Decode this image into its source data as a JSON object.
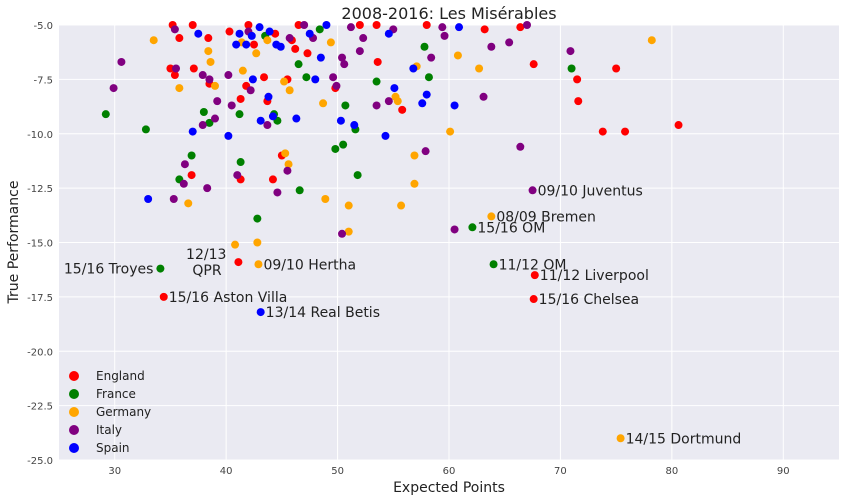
{
  "chart_data": {
    "type": "scatter",
    "title": "2008-2016: Les Misérables",
    "xlabel": "Expected Points",
    "ylabel": "True Performance",
    "xlim": [
      25,
      95
    ],
    "ylim": [
      -25,
      -5
    ],
    "xticks": [
      "30",
      "40",
      "50",
      "60",
      "70",
      "80",
      "90"
    ],
    "xtick_values": [
      30,
      40,
      50,
      60,
      70,
      80,
      90
    ],
    "yticks": [
      "-5.0",
      "-7.5",
      "-10.0",
      "-12.5",
      "-15.0",
      "-17.5",
      "-20.0",
      "-22.5",
      "-25.0"
    ],
    "ytick_values": [
      -5,
      -7.5,
      -10,
      -12.5,
      -15,
      -17.5,
      -20,
      -22.5,
      -25
    ],
    "grid": true,
    "legend_position": "bottom-left",
    "background": "#EAEAF2",
    "series": [
      {
        "name": "England",
        "color": "#FF0000",
        "points": [
          [
            35.2,
            -5.0
          ],
          [
            35.8,
            -5.6
          ],
          [
            37.0,
            -5.0
          ],
          [
            40.3,
            -5.3
          ],
          [
            42.0,
            -5.0
          ],
          [
            44.4,
            -5.4
          ],
          [
            46.5,
            -5.0
          ],
          [
            47.3,
            -6.3
          ],
          [
            52.0,
            -5.0
          ],
          [
            53.5,
            -5.0
          ],
          [
            58.0,
            -5.0
          ],
          [
            63.2,
            -5.2
          ],
          [
            66.4,
            -5.1
          ],
          [
            35.0,
            -7.0
          ],
          [
            35.4,
            -7.3
          ],
          [
            37.1,
            -7.0
          ],
          [
            38.5,
            -7.7
          ],
          [
            41.8,
            -7.8
          ],
          [
            43.4,
            -7.4
          ],
          [
            45.5,
            -7.5
          ],
          [
            49.8,
            -7.9
          ],
          [
            55.8,
            -8.9
          ],
          [
            67.6,
            -6.8
          ],
          [
            71.5,
            -7.5
          ],
          [
            75.0,
            -7.0
          ],
          [
            71.6,
            -8.5
          ],
          [
            73.8,
            -9.9
          ],
          [
            75.8,
            -9.9
          ],
          [
            80.6,
            -9.6
          ],
          [
            45.0,
            -11.0
          ],
          [
            44.2,
            -12.1
          ],
          [
            41.3,
            -12.1
          ],
          [
            36.9,
            -11.9
          ],
          [
            42.5,
            -5.9
          ],
          [
            45.9,
            -5.7
          ],
          [
            46.2,
            -6.1
          ],
          [
            41.3,
            -8.4
          ],
          [
            43.7,
            -8.5
          ],
          [
            53.6,
            -6.7
          ],
          [
            38.4,
            -5.6
          ],
          [
            41.1,
            -15.9
          ],
          [
            67.7,
            -16.5
          ],
          [
            34.4,
            -17.5
          ],
          [
            67.6,
            -17.6
          ]
        ]
      },
      {
        "name": "France",
        "color": "#008000",
        "points": [
          [
            29.2,
            -9.1
          ],
          [
            32.8,
            -9.8
          ],
          [
            35.8,
            -12.1
          ],
          [
            36.9,
            -11.0
          ],
          [
            38.0,
            -9.0
          ],
          [
            38.5,
            -9.5
          ],
          [
            41.2,
            -9.1
          ],
          [
            43.5,
            -5.5
          ],
          [
            44.3,
            -9.1
          ],
          [
            44.6,
            -9.4
          ],
          [
            46.5,
            -6.8
          ],
          [
            47.2,
            -7.4
          ],
          [
            48.4,
            -5.2
          ],
          [
            49.8,
            -10.7
          ],
          [
            50.5,
            -10.5
          ],
          [
            50.7,
            -8.7
          ],
          [
            51.6,
            -9.8
          ],
          [
            51.8,
            -11.9
          ],
          [
            53.5,
            -7.6
          ],
          [
            57.8,
            -6.0
          ],
          [
            58.2,
            -7.4
          ],
          [
            71.0,
            -7.0
          ],
          [
            41.3,
            -11.3
          ],
          [
            42.8,
            -13.9
          ],
          [
            46.6,
            -12.6
          ],
          [
            34.1,
            -16.2
          ],
          [
            62.1,
            -14.3
          ],
          [
            64.0,
            -16.0
          ]
        ]
      },
      {
        "name": "Germany",
        "color": "#FFA500",
        "points": [
          [
            33.5,
            -5.7
          ],
          [
            35.8,
            -7.9
          ],
          [
            38.4,
            -6.2
          ],
          [
            38.6,
            -6.7
          ],
          [
            39.0,
            -7.8
          ],
          [
            41.4,
            -5.8
          ],
          [
            41.5,
            -7.1
          ],
          [
            42.7,
            -6.3
          ],
          [
            43.7,
            -5.7
          ],
          [
            45.2,
            -7.6
          ],
          [
            45.7,
            -8.0
          ],
          [
            45.6,
            -11.4
          ],
          [
            45.3,
            -10.9
          ],
          [
            48.7,
            -8.6
          ],
          [
            48.9,
            -13.0
          ],
          [
            49.4,
            -5.8
          ],
          [
            51.0,
            -13.3
          ],
          [
            51.0,
            -14.5
          ],
          [
            55.2,
            -8.3
          ],
          [
            55.4,
            -8.5
          ],
          [
            55.7,
            -13.3
          ],
          [
            56.9,
            -11.0
          ],
          [
            56.9,
            -12.3
          ],
          [
            57.1,
            -6.9
          ],
          [
            60.1,
            -9.9
          ],
          [
            60.8,
            -6.4
          ],
          [
            62.7,
            -7.0
          ],
          [
            78.2,
            -5.7
          ],
          [
            36.6,
            -13.2
          ],
          [
            40.8,
            -15.1
          ],
          [
            42.8,
            -15.0
          ],
          [
            42.9,
            -16.0
          ],
          [
            63.8,
            -13.8
          ],
          [
            75.4,
            -24.0
          ]
        ]
      },
      {
        "name": "Italy",
        "color": "#800080",
        "points": [
          [
            30.6,
            -6.7
          ],
          [
            29.9,
            -7.9
          ],
          [
            35.5,
            -7.0
          ],
          [
            36.3,
            -11.4
          ],
          [
            36.2,
            -12.3
          ],
          [
            35.3,
            -13.0
          ],
          [
            35.4,
            -5.2
          ],
          [
            37.9,
            -7.3
          ],
          [
            38.5,
            -7.5
          ],
          [
            39.2,
            -8.5
          ],
          [
            39.0,
            -9.3
          ],
          [
            37.9,
            -9.6
          ],
          [
            38.3,
            -12.5
          ],
          [
            40.2,
            -7.3
          ],
          [
            40.5,
            -8.7
          ],
          [
            41.0,
            -11.9
          ],
          [
            42.0,
            -5.3
          ],
          [
            42.2,
            -8.0
          ],
          [
            43.7,
            -9.6
          ],
          [
            44.6,
            -12.7
          ],
          [
            45.5,
            -11.7
          ],
          [
            45.7,
            -5.6
          ],
          [
            47.0,
            -5.0
          ],
          [
            47.8,
            -5.6
          ],
          [
            49.6,
            -7.4
          ],
          [
            49.9,
            -7.8
          ],
          [
            50.4,
            -6.5
          ],
          [
            50.6,
            -6.8
          ],
          [
            51.2,
            -5.1
          ],
          [
            52.0,
            -6.2
          ],
          [
            52.3,
            -5.6
          ],
          [
            53.5,
            -8.7
          ],
          [
            54.6,
            -8.5
          ],
          [
            55.0,
            -5.2
          ],
          [
            57.9,
            -10.8
          ],
          [
            58.4,
            -6.5
          ],
          [
            59.4,
            -5.1
          ],
          [
            59.6,
            -5.5
          ],
          [
            60.5,
            -14.4
          ],
          [
            63.1,
            -8.3
          ],
          [
            63.8,
            -6.0
          ],
          [
            65.4,
            -5.8
          ],
          [
            66.4,
            -10.6
          ],
          [
            67.0,
            -5.0
          ],
          [
            70.9,
            -6.2
          ],
          [
            50.4,
            -14.6
          ],
          [
            67.5,
            -12.6
          ]
        ]
      },
      {
        "name": "Spain",
        "color": "#0000FF",
        "points": [
          [
            33.0,
            -13.0
          ],
          [
            37.0,
            -9.9
          ],
          [
            37.5,
            -5.4
          ],
          [
            40.2,
            -10.1
          ],
          [
            40.9,
            -5.9
          ],
          [
            41.2,
            -5.4
          ],
          [
            41.8,
            -5.9
          ],
          [
            42.3,
            -5.5
          ],
          [
            43.0,
            -5.1
          ],
          [
            42.4,
            -7.5
          ],
          [
            43.8,
            -8.3
          ],
          [
            43.9,
            -5.3
          ],
          [
            44.2,
            -9.2
          ],
          [
            44.9,
            -6.0
          ],
          [
            44.5,
            -5.9
          ],
          [
            46.3,
            -9.3
          ],
          [
            47.5,
            -5.4
          ],
          [
            48.0,
            -7.5
          ],
          [
            48.5,
            -6.5
          ],
          [
            49.0,
            -5.0
          ],
          [
            50.3,
            -9.4
          ],
          [
            51.5,
            -9.6
          ],
          [
            54.3,
            -10.1
          ],
          [
            54.6,
            -5.4
          ],
          [
            55.1,
            -7.9
          ],
          [
            56.8,
            -7.0
          ],
          [
            57.6,
            -8.6
          ],
          [
            58.0,
            -8.2
          ],
          [
            60.5,
            -8.7
          ],
          [
            60.9,
            -5.1
          ],
          [
            43.1,
            -18.2
          ],
          [
            43.1,
            -9.4
          ]
        ]
      }
    ],
    "annotations": [
      {
        "label": "09/10 Juventus",
        "x": 67.5,
        "y": -12.6
      },
      {
        "label": "08/09 Bremen",
        "x": 63.8,
        "y": -13.8
      },
      {
        "label": "15/16 OM",
        "x": 62.1,
        "y": -14.3
      },
      {
        "label": "15/16 Troyes",
        "x": 34.1,
        "y": -16.2,
        "align": "left"
      },
      {
        "label": "12/13",
        "label2": "QPR",
        "x": 41.1,
        "y": -15.9,
        "align": "stack"
      },
      {
        "label": "09/10 Hertha",
        "x": 42.9,
        "y": -16.0
      },
      {
        "label": "11/12 OM",
        "x": 64.0,
        "y": -16.0
      },
      {
        "label": "11/12 Liverpool",
        "x": 67.7,
        "y": -16.5
      },
      {
        "label": "15/16 Aston Villa",
        "x": 34.4,
        "y": -17.5
      },
      {
        "label": "15/16 Chelsea",
        "x": 67.6,
        "y": -17.6
      },
      {
        "label": "13/14 Real Betis",
        "x": 43.1,
        "y": -18.2
      },
      {
        "label": "14/15 Dortmund",
        "x": 75.4,
        "y": -24.0
      }
    ]
  }
}
